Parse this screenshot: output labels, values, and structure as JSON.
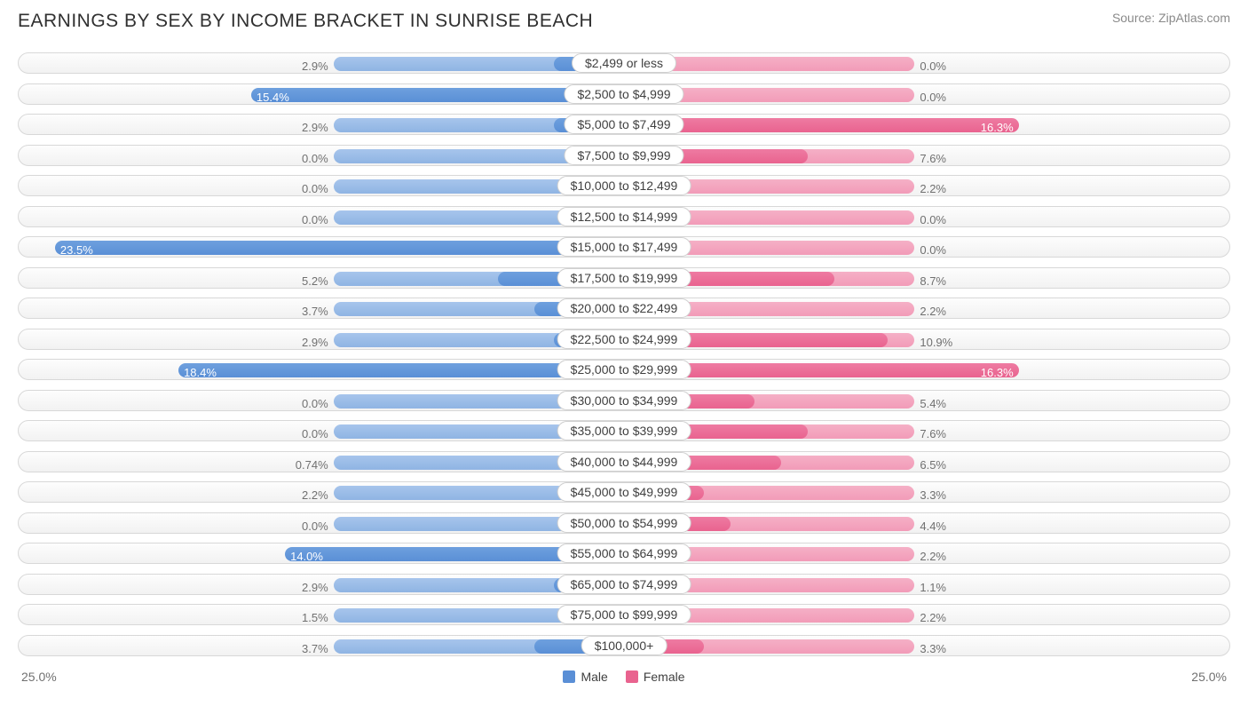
{
  "title": "EARNINGS BY SEX BY INCOME BRACKET IN SUNRISE BEACH",
  "source": "Source: ZipAtlas.com",
  "axis_max_pct": 25.0,
  "axis_max_label": "25.0%",
  "base_bar_pct": 12.0,
  "colors": {
    "male_base": "#8fb4e3",
    "male_data": "#5a8fd6",
    "female_base": "#f29bb8",
    "female_data": "#e9638f",
    "track_border": "#d8d8d8",
    "text_dark": "#303030",
    "text_mid": "#707070",
    "text_light": "#8a8a8a",
    "bg": "#ffffff"
  },
  "legend": {
    "male": "Male",
    "female": "Female"
  },
  "rows": [
    {
      "label": "$2,499 or less",
      "male": 2.9,
      "female": 0.0
    },
    {
      "label": "$2,500 to $4,999",
      "male": 15.4,
      "female": 0.0
    },
    {
      "label": "$5,000 to $7,499",
      "male": 2.9,
      "female": 16.3
    },
    {
      "label": "$7,500 to $9,999",
      "male": 0.0,
      "female": 7.6
    },
    {
      "label": "$10,000 to $12,499",
      "male": 0.0,
      "female": 2.2
    },
    {
      "label": "$12,500 to $14,999",
      "male": 0.0,
      "female": 0.0
    },
    {
      "label": "$15,000 to $17,499",
      "male": 23.5,
      "female": 0.0
    },
    {
      "label": "$17,500 to $19,999",
      "male": 5.2,
      "female": 8.7
    },
    {
      "label": "$20,000 to $22,499",
      "male": 3.7,
      "female": 2.2
    },
    {
      "label": "$22,500 to $24,999",
      "male": 2.9,
      "female": 10.9
    },
    {
      "label": "$25,000 to $29,999",
      "male": 18.4,
      "female": 16.3
    },
    {
      "label": "$30,000 to $34,999",
      "male": 0.0,
      "female": 5.4
    },
    {
      "label": "$35,000 to $39,999",
      "male": 0.0,
      "female": 7.6
    },
    {
      "label": "$40,000 to $44,999",
      "male": 0.74,
      "female": 6.5
    },
    {
      "label": "$45,000 to $49,999",
      "male": 2.2,
      "female": 3.3
    },
    {
      "label": "$50,000 to $54,999",
      "male": 0.0,
      "female": 4.4
    },
    {
      "label": "$55,000 to $64,999",
      "male": 14.0,
      "female": 2.2
    },
    {
      "label": "$65,000 to $74,999",
      "male": 2.9,
      "female": 1.1
    },
    {
      "label": "$75,000 to $99,999",
      "male": 1.5,
      "female": 2.2
    },
    {
      "label": "$100,000+",
      "male": 3.7,
      "female": 3.3
    }
  ]
}
